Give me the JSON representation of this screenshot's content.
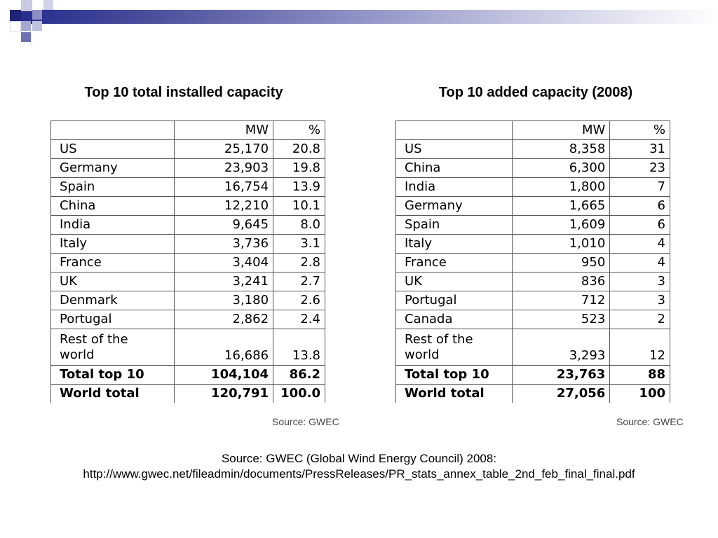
{
  "left": {
    "title": "Top 10 total installed capacity",
    "header": [
      "",
      "MW",
      "%"
    ],
    "rows": [
      [
        "US",
        "25,170",
        "20.8"
      ],
      [
        "Germany",
        "23,903",
        "19.8"
      ],
      [
        "Spain",
        "16,754",
        "13.9"
      ],
      [
        "China",
        "12,210",
        "10.1"
      ],
      [
        "India",
        "9,645",
        "8.0"
      ],
      [
        "Italy",
        "3,736",
        "3.1"
      ],
      [
        "France",
        "3,404",
        "2.8"
      ],
      [
        "UK",
        "3,241",
        "2.7"
      ],
      [
        "Denmark",
        "3,180",
        "2.6"
      ],
      [
        "Portugal",
        "2,862",
        "2.4"
      ]
    ],
    "rest": [
      "Rest of the",
      "world",
      "16,686",
      "13.8"
    ],
    "total": [
      "Total top 10",
      "104,104",
      "86.2"
    ],
    "world": [
      "World total",
      "120,791",
      "100.0"
    ],
    "source": "Source: GWEC"
  },
  "right": {
    "title": "Top 10 added capacity (2008)",
    "header": [
      "",
      "MW",
      "%"
    ],
    "rows": [
      [
        "US",
        "8,358",
        "31"
      ],
      [
        "China",
        "6,300",
        "23"
      ],
      [
        "India",
        "1,800",
        "7"
      ],
      [
        "Germany",
        "1,665",
        "6"
      ],
      [
        "Spain",
        "1,609",
        "6"
      ],
      [
        "Italy",
        "1,010",
        "4"
      ],
      [
        "France",
        "950",
        "4"
      ],
      [
        "UK",
        "836",
        "3"
      ],
      [
        "Portugal",
        "712",
        "3"
      ],
      [
        "Canada",
        "523",
        "2"
      ]
    ],
    "rest": [
      "Rest of the",
      "world",
      "3,293",
      "12"
    ],
    "total": [
      "Total top 10",
      "23,763",
      "88"
    ],
    "world": [
      "World total",
      "27,056",
      "100"
    ],
    "source": "Source: GWEC"
  },
  "footer": {
    "line1": "Source: GWEC (Global Wind Energy Council) 2008:",
    "line2": "http://www.gwec.net/fileadmin/documents/PressReleases/PR_stats_annex_table_2nd_feb_final_final.pdf"
  }
}
